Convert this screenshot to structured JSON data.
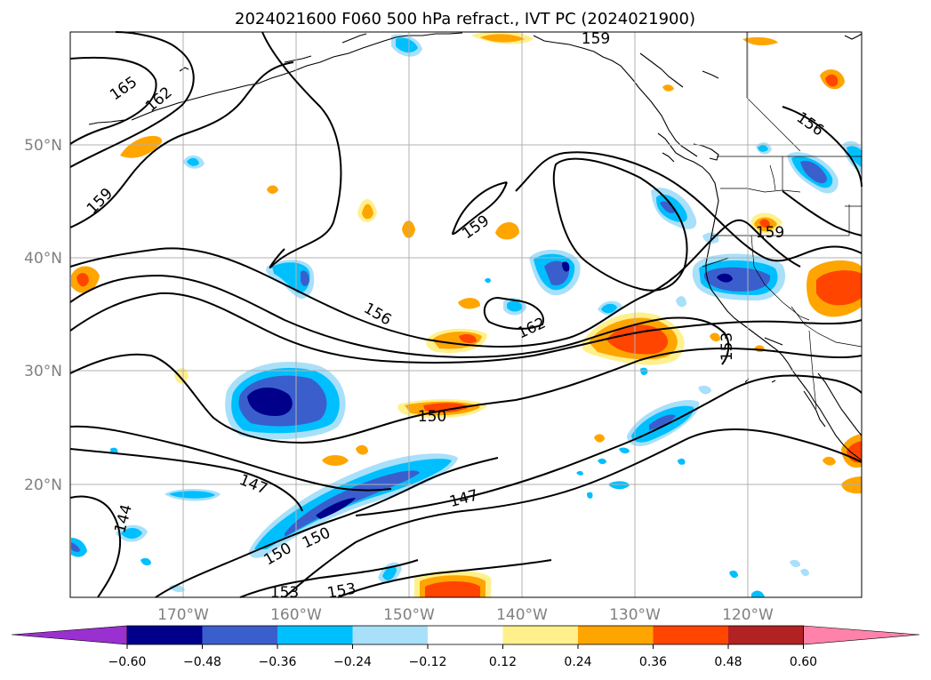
{
  "title": "2024021600 F060 500 hPa refract., IVT PC (2024021900)",
  "lat_labels": [
    "50°N",
    "40°N",
    "30°N",
    "20°N"
  ],
  "lon_labels": [
    "170°W",
    "160°W",
    "150°W",
    "140°W",
    "130°W",
    "120°W"
  ],
  "contour_labels": [
    "165",
    "162",
    "159",
    "159",
    "156",
    "162",
    "153",
    "159",
    "156",
    "150",
    "147",
    "147",
    "144",
    "150",
    "150",
    "153",
    "153",
    "159"
  ],
  "colorbar": {
    "ticks": [
      "−0.60",
      "−0.48",
      "−0.36",
      "−0.24",
      "−0.12",
      "0.12",
      "0.24",
      "0.36",
      "0.48",
      "0.60"
    ],
    "colors": [
      "#9b30d0",
      "#00008b",
      "#3a5fcd",
      "#00bfff",
      "#a8e0fa",
      "#ffffff",
      "#fff08c",
      "#ffa500",
      "#ff4500",
      "#b22222",
      "#ff82ab"
    ]
  }
}
